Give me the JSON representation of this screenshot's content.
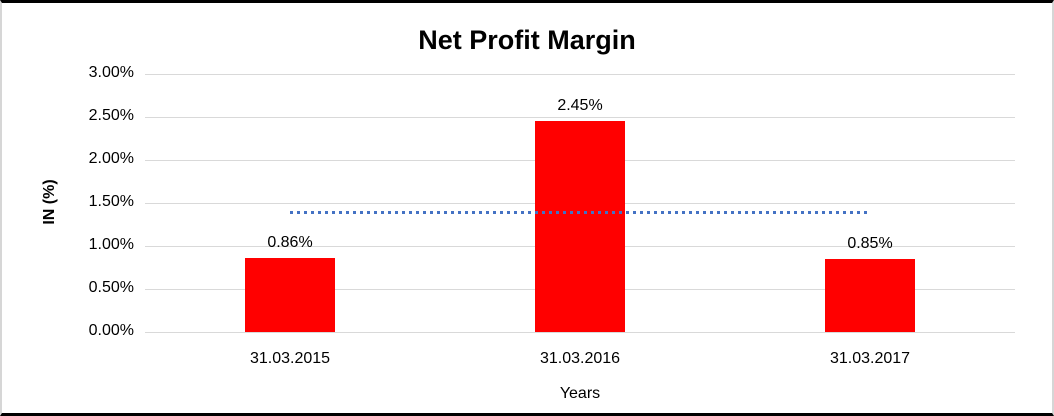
{
  "chart_data": {
    "type": "bar",
    "title": "Net Profit Margin",
    "xlabel": "Years",
    "ylabel": "IN (%)",
    "categories": [
      "31.03.2015",
      "31.03.2016",
      "31.03.2017"
    ],
    "values": [
      0.86,
      2.45,
      0.85
    ],
    "data_labels": [
      "0.86%",
      "2.45%",
      "0.85%"
    ],
    "ylim": [
      0,
      3.0
    ],
    "yticks": [
      {
        "value": 0.0,
        "label": "0.00%"
      },
      {
        "value": 0.5,
        "label": "0.50%"
      },
      {
        "value": 1.0,
        "label": "1.00%"
      },
      {
        "value": 1.5,
        "label": "1.50%"
      },
      {
        "value": 2.0,
        "label": "2.00%"
      },
      {
        "value": 2.5,
        "label": "2.50%"
      },
      {
        "value": 3.0,
        "label": "3.00%"
      }
    ],
    "grid": true,
    "legend": "none",
    "bar_color": "#FF0000",
    "gridline_color": "#D9D9D9",
    "trendline": {
      "type": "linear",
      "value": 1.39,
      "color": "#4472C4",
      "style": "dotted",
      "spans": "first-bar-center-to-last-bar-center"
    }
  }
}
